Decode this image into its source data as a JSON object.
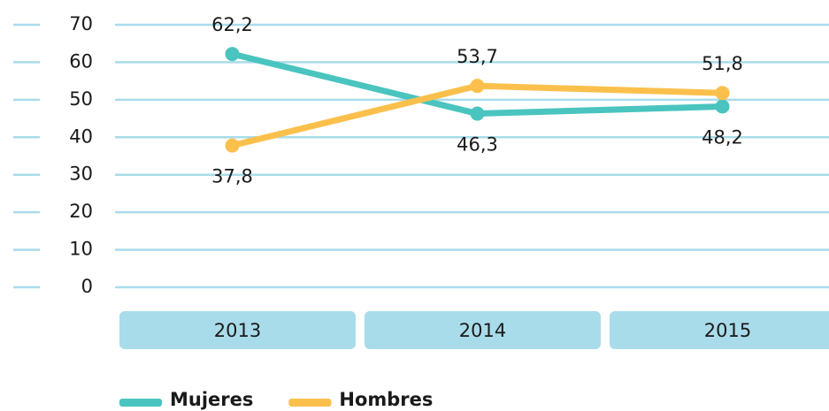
{
  "chart_data": {
    "type": "line",
    "categories": [
      "2013",
      "2014",
      "2015"
    ],
    "series": [
      {
        "name": "Mujeres",
        "color": "#4ac4bf",
        "values": [
          62.2,
          46.3,
          48.2
        ],
        "value_labels": [
          "62,2",
          "46,3",
          "48,2"
        ]
      },
      {
        "name": "Hombres",
        "color": "#fbc04c",
        "values": [
          37.8,
          53.7,
          51.8
        ],
        "value_labels": [
          "37,8",
          "53,7",
          "51,8"
        ]
      }
    ],
    "ylim": [
      0,
      70
    ],
    "yticks": [
      0,
      10,
      20,
      30,
      40,
      50,
      60,
      70
    ],
    "grid": true
  }
}
